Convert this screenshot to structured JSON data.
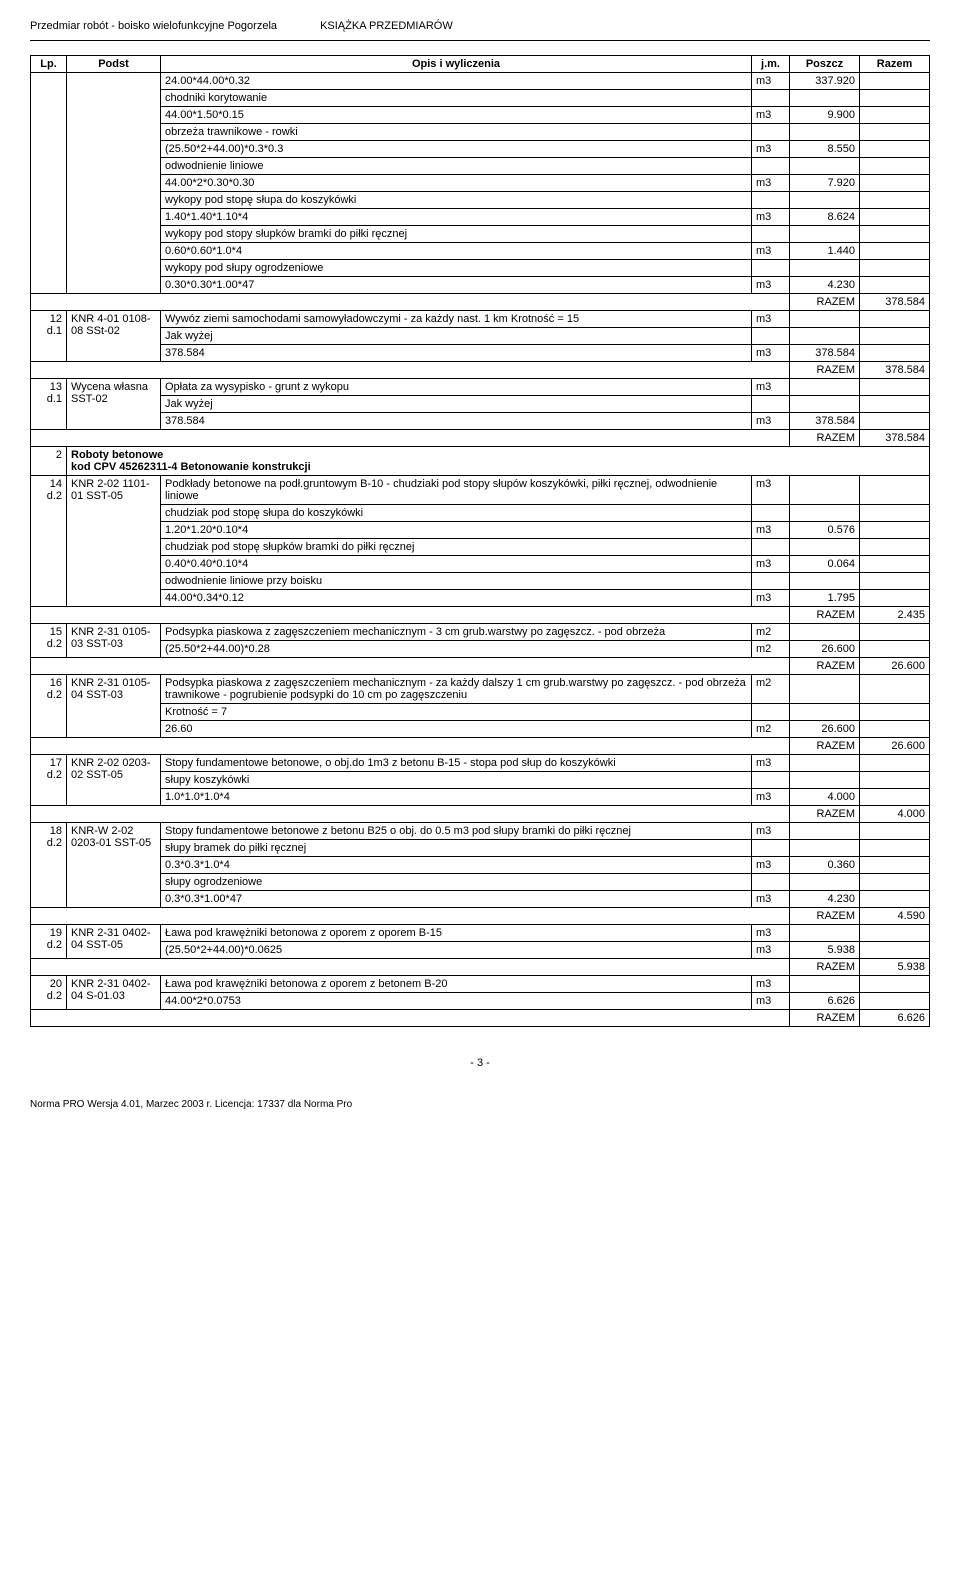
{
  "header": {
    "left": "Przedmiar robót - boisko wielofunkcyjne Pogorzela",
    "right": "KSIĄŻKA PRZEDMIARÓW"
  },
  "columns": {
    "lp": "Lp.",
    "podst": "Podst",
    "opis": "Opis i wyliczenia",
    "jm": "j.m.",
    "poszcz": "Poszcz",
    "razem": "Razem"
  },
  "block_top": {
    "lines": [
      {
        "opis_calc": "24.00*44.00*0.32",
        "jm": "m3",
        "val": "337.920"
      },
      {
        "opis_text": "chodniki korytowanie"
      },
      {
        "opis_calc": "44.00*1.50*0.15",
        "jm": "m3",
        "val": "9.900"
      },
      {
        "opis_text": "obrzeża trawnikowe - rowki"
      },
      {
        "opis_calc": "(25.50*2+44.00)*0.3*0.3",
        "jm": "m3",
        "val": "8.550"
      },
      {
        "opis_text": "odwodnienie liniowe"
      },
      {
        "opis_calc": "44.00*2*0.30*0.30",
        "jm": "m3",
        "val": "7.920"
      },
      {
        "opis_text": "wykopy pod stopę słupa do koszykówki"
      },
      {
        "opis_calc": "1.40*1.40*1.10*4",
        "jm": "m3",
        "val": "8.624"
      },
      {
        "opis_text": "wykopy pod stopy słupków bramki do piłki ręcznej"
      },
      {
        "opis_calc": "0.60*0.60*1.0*4",
        "jm": "m3",
        "val": "1.440"
      },
      {
        "opis_text": "wykopy pod słupy ogrodzeniowe"
      },
      {
        "opis_calc": "0.30*0.30*1.00*47",
        "jm": "m3",
        "val": "4.230"
      }
    ],
    "razem_label": "RAZEM",
    "razem_val": "378.584"
  },
  "rows": [
    {
      "lp": "12",
      "lp2": "d.1",
      "podst": "KNR 4-01 0108-08 SSt-02",
      "opis_main": "Wywóz ziemi samochodami samowyładowczymi - za każdy nast. 1 km Krotność = 15",
      "opis_jm": "m3",
      "sublines": [
        {
          "opis_text": "Jak wyżej"
        },
        {
          "opis_calc": "378.584",
          "jm": "m3",
          "val": "378.584"
        }
      ],
      "razem_label": "RAZEM",
      "razem_val": "378.584"
    },
    {
      "lp": "13",
      "lp2": "d.1",
      "podst": "Wycena własna SST-02",
      "opis_main": "Opłata za wysypisko - grunt z wykopu",
      "opis_jm": "m3",
      "sublines": [
        {
          "opis_text": "Jak wyżej"
        },
        {
          "opis_calc": "378.584",
          "jm": "m3",
          "val": "378.584"
        }
      ],
      "razem_label": "RAZEM",
      "razem_val": "378.584"
    }
  ],
  "section": {
    "lp": "2",
    "title": "Roboty betonowe",
    "sub": "kod CPV 45262311-4 Betonowanie konstrukcji"
  },
  "rows2": [
    {
      "lp": "14",
      "lp2": "d.2",
      "podst": "KNR 2-02 1101-01 SST-05",
      "opis_main": "Podkłady betonowe na podł.gruntowym B-10 - chudziaki pod stopy słupów koszykówki, piłki ręcznej, odwodnienie liniowe",
      "opis_jm": "m3",
      "sublines": [
        {
          "opis_text": "chudziak pod stopę słupa do koszykówki"
        },
        {
          "opis_calc": "1.20*1.20*0.10*4",
          "jm": "m3",
          "val": "0.576"
        },
        {
          "opis_text": "chudziak pod stopę słupków bramki do piłki ręcznej"
        },
        {
          "opis_calc": "0.40*0.40*0.10*4",
          "jm": "m3",
          "val": "0.064"
        },
        {
          "opis_text": "odwodnienie liniowe przy boisku"
        },
        {
          "opis_calc": "44.00*0.34*0.12",
          "jm": "m3",
          "val": "1.795"
        }
      ],
      "razem_label": "RAZEM",
      "razem_val": "2.435"
    },
    {
      "lp": "15",
      "lp2": "d.2",
      "podst": "KNR 2-31 0105-03 SST-03",
      "opis_main": "Podsypka piaskowa z zagęszczeniem mechanicznym - 3 cm grub.warstwy po zagęszcz. - pod obrzeża",
      "opis_jm": "m2",
      "sublines": [
        {
          "opis_calc": "(25.50*2+44.00)*0.28",
          "jm": "m2",
          "val": "26.600"
        }
      ],
      "razem_label": "RAZEM",
      "razem_val": "26.600"
    },
    {
      "lp": "16",
      "lp2": "d.2",
      "podst": "KNR 2-31 0105-04 SST-03",
      "opis_main": "Podsypka piaskowa z zagęszczeniem mechanicznym - za każdy dalszy 1 cm grub.warstwy po zagęszcz. - pod obrzeża trawnikowe - pogrubienie podsypki do 10 cm po zagęszczeniu",
      "opis_jm": "m2",
      "sublines": [
        {
          "opis_text": "Krotność = 7"
        },
        {
          "opis_calc": "26.60",
          "jm": "m2",
          "val": "26.600"
        }
      ],
      "razem_label": "RAZEM",
      "razem_val": "26.600"
    },
    {
      "lp": "17",
      "lp2": "d.2",
      "podst": "KNR 2-02 0203-02 SST-05",
      "opis_main": "Stopy fundamentowe betonowe, o obj.do 1m3 z betonu B-15 - stopa pod słup do koszykówki",
      "opis_jm": "m3",
      "sublines": [
        {
          "opis_text": "słupy koszykówki"
        },
        {
          "opis_calc": "1.0*1.0*1.0*4",
          "jm": "m3",
          "val": "4.000"
        }
      ],
      "razem_label": "RAZEM",
      "razem_val": "4.000"
    },
    {
      "lp": "18",
      "lp2": "d.2",
      "podst": "KNR-W 2-02 0203-01 SST-05",
      "opis_main": "Stopy fundamentowe betonowe z betonu B25 o obj. do 0.5 m3 pod słupy bramki do piłki ręcznej",
      "opis_jm": "m3",
      "sublines": [
        {
          "opis_text": "słupy bramek do piłki ręcznej"
        },
        {
          "opis_calc": "0.3*0.3*1.0*4",
          "jm": "m3",
          "val": "0.360"
        },
        {
          "opis_text": "słupy ogrodzeniowe"
        },
        {
          "opis_calc": "0.3*0.3*1.00*47",
          "jm": "m3",
          "val": "4.230"
        }
      ],
      "razem_label": "RAZEM",
      "razem_val": "4.590"
    },
    {
      "lp": "19",
      "lp2": "d.2",
      "podst": "KNR 2-31 0402-04 SST-05",
      "opis_main": "Ława pod krawężniki betonowa z oporem z oporem B-15",
      "opis_jm": "m3",
      "sublines": [
        {
          "opis_calc": "(25.50*2+44.00)*0.0625",
          "jm": "m3",
          "val": "5.938"
        }
      ],
      "razem_label": "RAZEM",
      "razem_val": "5.938"
    },
    {
      "lp": "20",
      "lp2": "d.2",
      "podst": "KNR 2-31 0402-04 S-01.03",
      "opis_main": "Ława pod krawężniki betonowa z oporem z betonem B-20",
      "opis_jm": "m3",
      "sublines": [
        {
          "opis_calc": "44.00*2*0.0753",
          "jm": "m3",
          "val": "6.626"
        }
      ],
      "razem_label": "RAZEM",
      "razem_val": "6.626"
    }
  ],
  "page_number": "- 3 -",
  "footer": "Norma PRO Wersja 4.01, Marzec 2003 r. Licencja: 17337 dla Norma Pro"
}
